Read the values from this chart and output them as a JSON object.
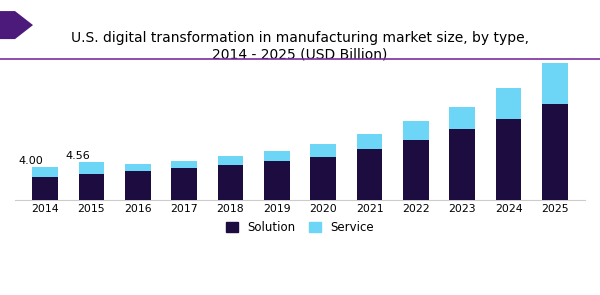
{
  "title": "U.S. digital transformation in manufacturing market size, by type,\n2014 - 2025 (USD Billion)",
  "years": [
    2014,
    2015,
    2016,
    2017,
    2018,
    2019,
    2020,
    2021,
    2022,
    2023,
    2024,
    2025
  ],
  "solution": [
    2.75,
    3.1,
    3.45,
    3.8,
    4.2,
    4.65,
    5.2,
    6.1,
    7.2,
    8.5,
    9.8,
    11.5
  ],
  "service": [
    1.25,
    1.46,
    0.9,
    0.95,
    1.1,
    1.3,
    1.55,
    1.9,
    2.3,
    2.7,
    3.7,
    5.0
  ],
  "annotations": [
    {
      "year_idx": 0,
      "text": "4.00"
    },
    {
      "year_idx": 1,
      "text": "4.56"
    }
  ],
  "solution_color": "#1c0c3f",
  "service_color": "#6dd5f5",
  "background_color": "#ffffff",
  "title_fontsize": 10.0,
  "ylim": [
    0,
    18
  ],
  "bar_width": 0.55,
  "deco_color": "#4b1a7a",
  "line_color": "#7b2d9e"
}
